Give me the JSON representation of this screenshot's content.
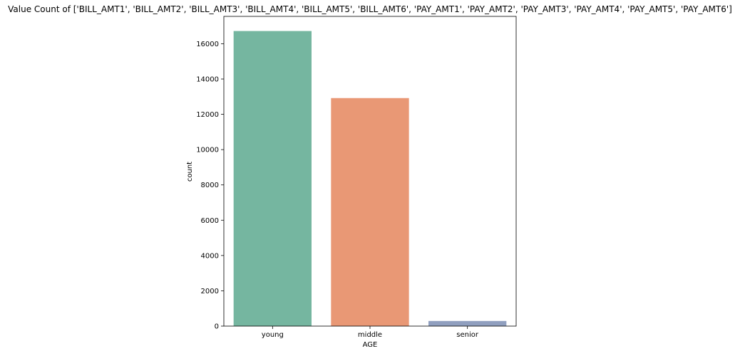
{
  "chart_data": {
    "type": "bar",
    "title": "Value Count of ['BILL_AMT1', 'BILL_AMT2', 'BILL_AMT3', 'BILL_AMT4', 'BILL_AMT5', 'BILL_AMT6', 'PAY_AMT1', 'PAY_AMT2', 'PAY_AMT3', 'PAY_AMT4', 'PAY_AMT5', 'PAY_AMT6']",
    "xlabel": "AGE",
    "ylabel": "count",
    "categories": [
      "young",
      "middle",
      "senior"
    ],
    "values": [
      16720,
      12920,
      290
    ],
    "colors": [
      "#75b6a0",
      "#e99875",
      "#909fbf"
    ],
    "ylim": [
      0,
      17550
    ],
    "yticks": [
      0,
      2000,
      4000,
      6000,
      8000,
      10000,
      12000,
      14000,
      16000
    ],
    "grid": false,
    "legend": "none"
  }
}
